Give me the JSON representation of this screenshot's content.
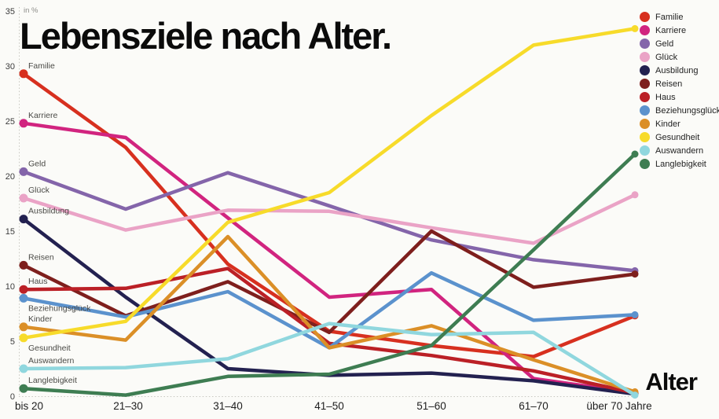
{
  "title": "Lebensziele nach Alter.",
  "unit_label": "in %",
  "x_axis_title": "Alter",
  "chart_data": {
    "type": "line",
    "title": "Lebensziele nach Alter.",
    "ylabel": "in %",
    "xlabel": "Alter",
    "ylim": [
      0,
      35
    ],
    "y_ticks": [
      35,
      30,
      25,
      20,
      15,
      10,
      5,
      0
    ],
    "grid": false,
    "legend_position": "top-right",
    "categories": [
      "bis 20",
      "21–30",
      "31–40",
      "41–50",
      "51–60",
      "61–70",
      "über 70 Jahre"
    ],
    "series": [
      {
        "name": "Familie",
        "color": "#d7301f",
        "label_below_dot": false,
        "values": [
          29.3,
          22.6,
          12.0,
          5.9,
          4.6,
          3.6,
          7.3
        ]
      },
      {
        "name": "Karriere",
        "color": "#d1247f",
        "label_below_dot": false,
        "values": [
          24.8,
          23.5,
          16.2,
          9.0,
          9.7,
          1.6,
          0.3
        ]
      },
      {
        "name": "Geld",
        "color": "#8465aa",
        "label_below_dot": false,
        "values": [
          20.4,
          17.0,
          20.3,
          17.3,
          14.2,
          12.4,
          11.4
        ]
      },
      {
        "name": "Glück",
        "color": "#eaa3c6",
        "label_below_dot": false,
        "values": [
          18.0,
          15.1,
          16.9,
          16.8,
          15.3,
          13.9,
          18.3
        ]
      },
      {
        "name": "Ausbildung",
        "color": "#232150",
        "label_below_dot": false,
        "values": [
          16.1,
          9.0,
          2.5,
          1.9,
          2.1,
          1.4,
          0.2
        ]
      },
      {
        "name": "Reisen",
        "color": "#7e1f1d",
        "label_below_dot": false,
        "values": [
          11.9,
          7.3,
          10.4,
          5.8,
          15.0,
          9.9,
          11.1
        ]
      },
      {
        "name": "Haus",
        "color": "#bb2026",
        "label_below_dot": false,
        "values": [
          9.7,
          9.8,
          11.6,
          4.8,
          3.7,
          2.3,
          0.3
        ]
      },
      {
        "name": "Beziehungsglück",
        "color": "#5b92cd",
        "label_below_dot": true,
        "values": [
          8.9,
          7.2,
          9.5,
          4.4,
          11.2,
          6.9,
          7.4
        ]
      },
      {
        "name": "Kinder",
        "color": "#db8f27",
        "label_below_dot": false,
        "values": [
          6.3,
          5.1,
          14.5,
          4.4,
          6.4,
          3.3,
          0.4
        ]
      },
      {
        "name": "Gesundheit",
        "color": "#f7db2a",
        "label_below_dot": true,
        "values": [
          5.3,
          6.8,
          15.8,
          18.5,
          25.5,
          31.9,
          33.4
        ]
      },
      {
        "name": "Auswandern",
        "color": "#90d7de",
        "label_below_dot": false,
        "values": [
          2.5,
          2.6,
          3.4,
          6.6,
          5.6,
          5.8,
          0.1
        ]
      },
      {
        "name": "Langlebigkeit",
        "color": "#3e7d52",
        "label_below_dot": false,
        "values": [
          0.7,
          0.1,
          1.8,
          2.0,
          4.6,
          13.3,
          22.0
        ]
      }
    ]
  }
}
